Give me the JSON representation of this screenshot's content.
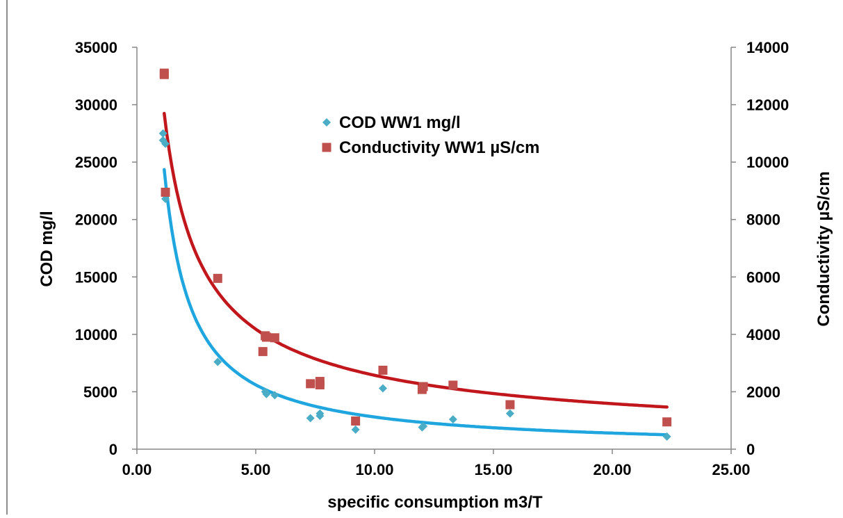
{
  "chart_data": {
    "type": "scatter",
    "xlabel": "specific consumption m3/T",
    "ylabel": "COD mg/l",
    "y2label": "Conductivity µS/cm",
    "xlim": [
      0,
      25
    ],
    "ylim": [
      0,
      35000
    ],
    "y2lim": [
      0,
      14000
    ],
    "x_ticks": [
      "0.00",
      "5.00",
      "10.00",
      "15.00",
      "20.00",
      "25.00"
    ],
    "y_ticks": [
      "0",
      "5000",
      "10000",
      "15000",
      "20000",
      "25000",
      "30000",
      "35000"
    ],
    "y2_ticks": [
      "0",
      "2000",
      "4000",
      "6000",
      "8000",
      "10000",
      "12000",
      "14000"
    ],
    "grid": false,
    "legend_position": "top-center",
    "series": [
      {
        "name": "COD WW1 mg/l",
        "axis": "left",
        "marker": "diamond",
        "color": "#4BACC6",
        "points": [
          [
            1.1,
            27500
          ],
          [
            1.1,
            26900
          ],
          [
            1.2,
            26600
          ],
          [
            1.2,
            21800
          ],
          [
            3.4,
            7600
          ],
          [
            5.4,
            5000
          ],
          [
            5.45,
            4800
          ],
          [
            5.8,
            4700
          ],
          [
            7.3,
            2700
          ],
          [
            7.7,
            2900
          ],
          [
            7.7,
            3100
          ],
          [
            9.2,
            1700
          ],
          [
            10.35,
            5300
          ],
          [
            12.0,
            1900
          ],
          [
            12.05,
            2000
          ],
          [
            13.3,
            2600
          ],
          [
            15.7,
            3100
          ],
          [
            22.3,
            1100
          ]
        ]
      },
      {
        "name": "Conductivity WW1 µS/cm",
        "axis": "right",
        "marker": "square",
        "color": "#C0504D",
        "points": [
          [
            1.15,
            13100
          ],
          [
            1.15,
            13050
          ],
          [
            1.2,
            8950
          ],
          [
            3.4,
            5950
          ],
          [
            5.3,
            3400
          ],
          [
            5.4,
            3950
          ],
          [
            5.45,
            3900
          ],
          [
            5.8,
            3880
          ],
          [
            7.3,
            2280
          ],
          [
            7.7,
            2240
          ],
          [
            7.7,
            2360
          ],
          [
            9.2,
            980
          ],
          [
            10.35,
            2750
          ],
          [
            12.0,
            2080
          ],
          [
            12.05,
            2180
          ],
          [
            13.3,
            2230
          ],
          [
            15.7,
            1550
          ],
          [
            22.3,
            950
          ]
        ]
      }
    ],
    "trendlines": [
      {
        "series": "COD WW1 mg/l",
        "axis": "left",
        "type": "power",
        "a": 28000,
        "b": -1.0,
        "x_range": [
          1.15,
          22.3
        ],
        "color": "#1FA6DE"
      },
      {
        "series": "Conductivity WW1 µS/cm",
        "axis": "right",
        "type": "power",
        "a": 12900,
        "b": -0.7,
        "x_range": [
          1.15,
          22.3
        ],
        "color": "#C0161C"
      }
    ]
  }
}
